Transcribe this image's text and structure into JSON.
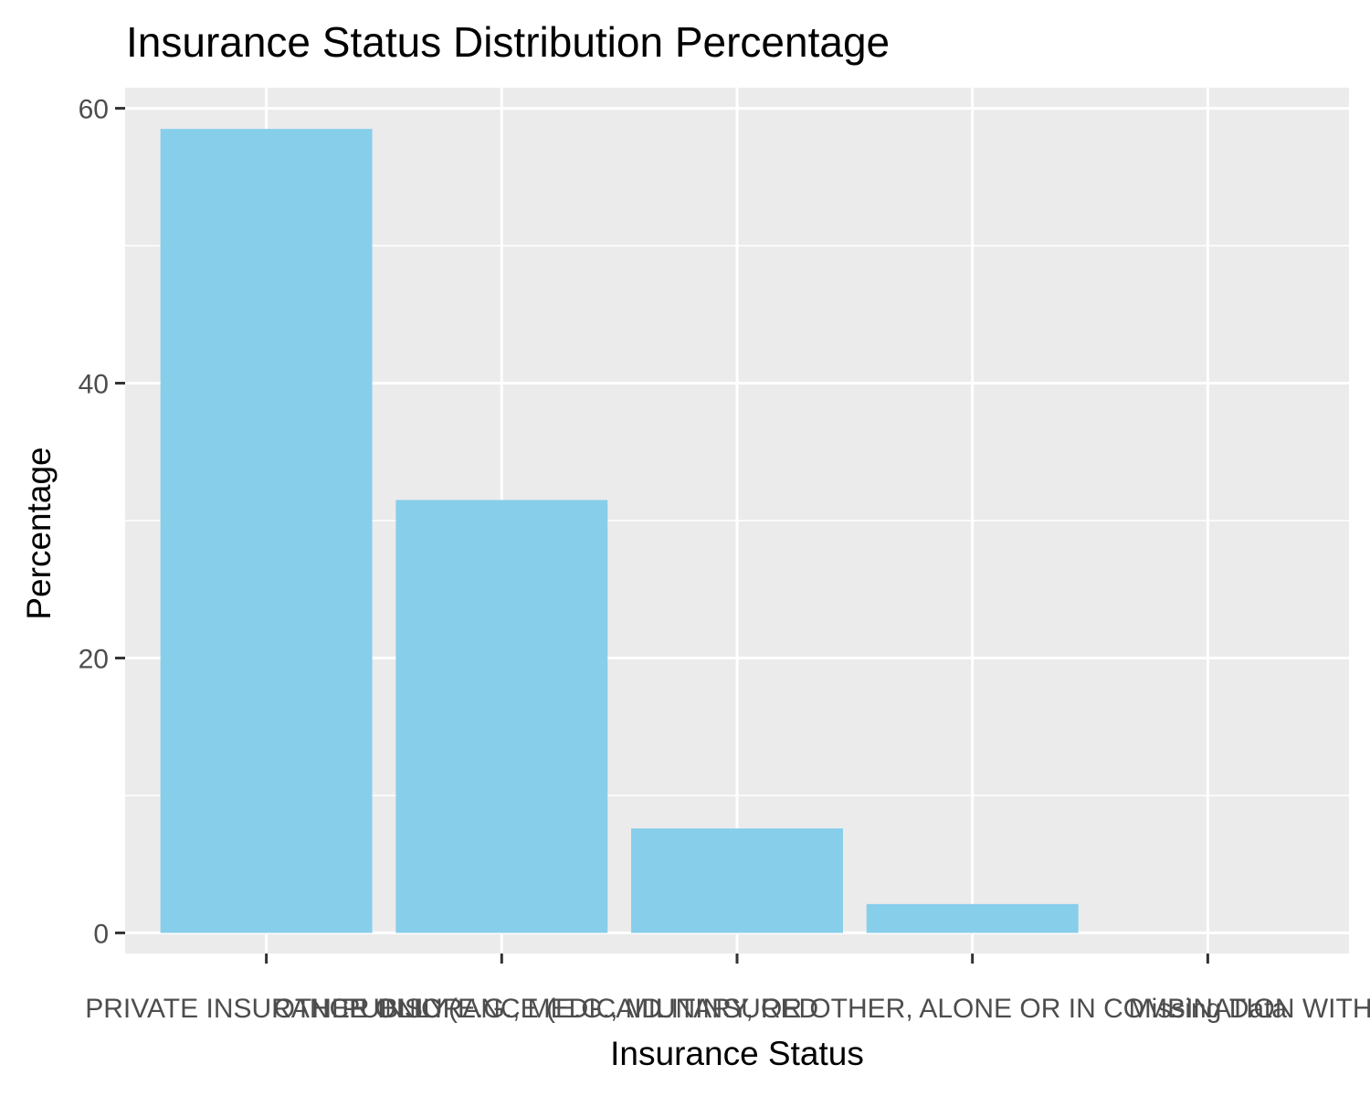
{
  "chart_data": {
    "type": "bar",
    "title": "Insurance Status Distribution Percentage",
    "xlabel": "Insurance Status",
    "ylabel": "Percentage",
    "categories": [
      "PRIVATE INSURANCE ONLY",
      "PUBLIC (E.G., MEDICAID",
      "UNINSURED",
      "OTHER INSURANCE (E.G., MILITARY, OR OTHER, ALONE OR IN COMBINATION WITH PRIVATE INSURANCE)",
      "Missing Data"
    ],
    "values": [
      58.5,
      31.5,
      7.6,
      2.1,
      0.0
    ],
    "ylim": [
      -1.5,
      61.5
    ],
    "yticks": [
      0,
      20,
      40,
      60
    ],
    "grid": true,
    "legend": "none",
    "colors": {
      "bar": "#87CEEB",
      "panel": "#EBEBEB",
      "grid": "#FFFFFF",
      "tick": "#333333"
    }
  }
}
